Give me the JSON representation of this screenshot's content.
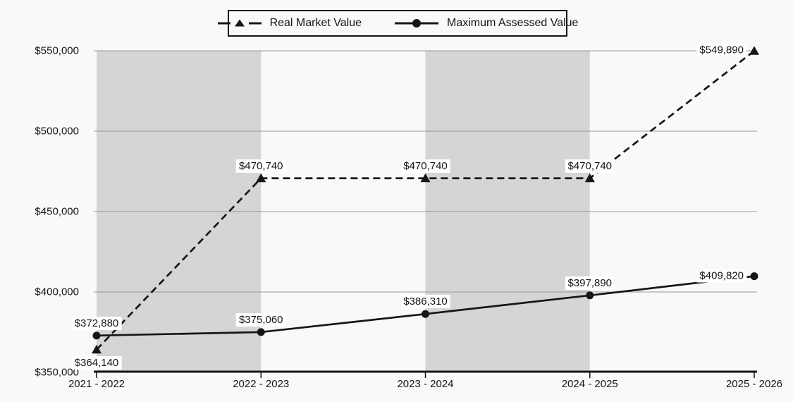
{
  "chart_data": {
    "type": "line",
    "title": "",
    "categories": [
      "2021 - 2022",
      "2022 - 2023",
      "2023 - 2024",
      "2024 - 2025",
      "2025 - 2026"
    ],
    "y_axis": {
      "min": 350000,
      "max": 550000,
      "step": 50000,
      "tick_labels": [
        "$350,000",
        "$400,000",
        "$450,000",
        "$500,000",
        "$550,000"
      ]
    },
    "series": [
      {
        "name": "Real Market Value",
        "marker": "triangle",
        "line_style": "dashed",
        "values": [
          364140,
          470740,
          470740,
          470740,
          549890
        ],
        "point_labels": [
          "$364,140",
          "$470,740",
          "$470,740",
          "$470,740",
          "$549,890"
        ],
        "label_pos": [
          "below",
          "above",
          "above",
          "above",
          "left"
        ]
      },
      {
        "name": "Maximum Assessed Value",
        "marker": "circle",
        "line_style": "solid",
        "values": [
          372880,
          375060,
          386310,
          397890,
          409820
        ],
        "point_labels": [
          "$372,880",
          "$375,060",
          "$386,310",
          "$397,890",
          "$409,820"
        ],
        "label_pos": [
          "above",
          "above",
          "above",
          "above",
          "left"
        ]
      }
    ],
    "shaded_bands": [
      [
        0,
        1
      ],
      [
        2,
        3
      ]
    ],
    "legend": {
      "position": "top-center",
      "items": [
        "Real Market Value",
        "Maximum Assessed Value"
      ]
    },
    "grid": "horizontal",
    "colors": {
      "line": "#161616",
      "gridline": "#969696",
      "band": "#d5d5d5",
      "background": "#f9f9f7",
      "label_bg": "#fefefe"
    }
  }
}
